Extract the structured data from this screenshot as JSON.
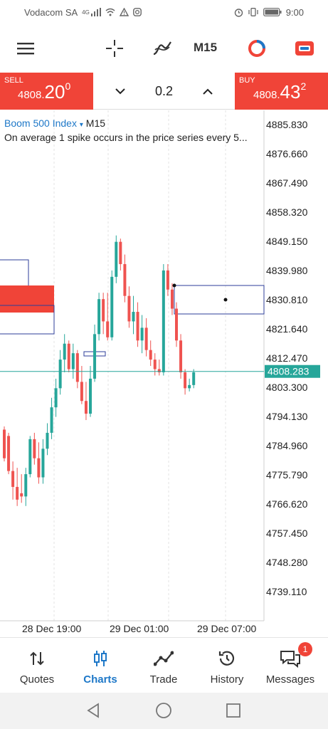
{
  "status_bar": {
    "carrier": "Vodacom SA",
    "network": "4G",
    "time": "9:00"
  },
  "toolbar": {
    "timeframe": "M15",
    "icons": [
      "menu-icon",
      "crosshair-icon",
      "indicators-icon",
      "timeframe",
      "chart-type-icon",
      "trade-toggle-icon"
    ]
  },
  "trade": {
    "sell_tag": "SELL",
    "sell_small": "4808.",
    "sell_big": "20",
    "sell_sup": "0",
    "buy_tag": "BUY",
    "buy_small": "4808.",
    "buy_big": "43",
    "buy_sup": "2",
    "volume": "0.2"
  },
  "chart": {
    "symbol": "Boom 500 Index",
    "dropdown_marker": "▾",
    "timeframe": "M15",
    "description": "On average 1 spike occurs in the price series every 5...",
    "current_price": "4808.283"
  },
  "chart_data": {
    "type": "candlestick",
    "price_axis_labels": [
      "4885.830",
      "4876.660",
      "4867.490",
      "4858.320",
      "4849.150",
      "4839.980",
      "4830.810",
      "4821.640",
      "4812.470",
      "4803.300",
      "4794.130",
      "4784.960",
      "4775.790",
      "4766.620",
      "4757.450",
      "4748.280",
      "4739.110"
    ],
    "time_axis_labels": [
      "28 Dec 19:00",
      "29 Dec 01:00",
      "29 Dec 07:00"
    ],
    "current_price": 4808.283,
    "colors": {
      "bull": "#26a69a",
      "bear": "#ef5350",
      "price_line": "#26a69a"
    }
  },
  "nav": {
    "items": [
      {
        "label": "Quotes",
        "icon": "quotes-icon"
      },
      {
        "label": "Charts",
        "icon": "charts-icon"
      },
      {
        "label": "Trade",
        "icon": "trade-icon"
      },
      {
        "label": "History",
        "icon": "history-icon"
      },
      {
        "label": "Messages",
        "icon": "messages-icon"
      }
    ],
    "messages_badge": "1"
  },
  "colors": {
    "accent": "#1e78c8",
    "sell_buy": "#f04438"
  }
}
